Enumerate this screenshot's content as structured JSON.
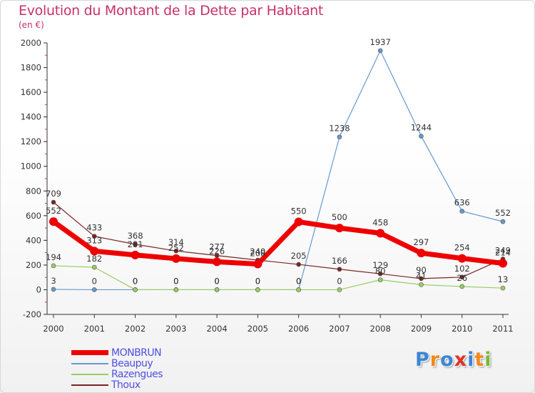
{
  "chart_data": {
    "type": "line",
    "title": "Evolution du Montant de la Dette par Habitant",
    "subtitle": "(en €)",
    "x": [
      "2000",
      "2001",
      "2002",
      "2003",
      "2004",
      "2005",
      "2006",
      "2007",
      "2008",
      "2009",
      "2010",
      "2011"
    ],
    "ylim": [
      -200,
      2000
    ],
    "yticks": [
      -200,
      0,
      200,
      400,
      600,
      800,
      1000,
      1200,
      1400,
      1600,
      1800,
      2000
    ],
    "grid": false,
    "legend_position": "bottom-left",
    "series": [
      {
        "name": "MONBRUN",
        "color": "#ee0000",
        "values": [
          552,
          313,
          281,
          252,
          226,
          208,
          550,
          500,
          458,
          297,
          254,
          214
        ]
      },
      {
        "name": "Beaupuy",
        "color": "#6699cc",
        "values": [
          3,
          0,
          0,
          0,
          0,
          0,
          0,
          1238,
          1937,
          1244,
          636,
          552
        ]
      },
      {
        "name": "Razengues",
        "color": "#99cc66",
        "values": [
          194,
          182,
          0,
          0,
          0,
          0,
          0,
          0,
          80,
          41,
          26,
          13
        ]
      },
      {
        "name": "Thoux",
        "color": "#7a2525",
        "values": [
          709,
          433,
          368,
          314,
          277,
          240,
          205,
          166,
          129,
          90,
          102,
          249
        ]
      }
    ]
  },
  "brand": {
    "letters": [
      "P",
      "r",
      "o",
      "x",
      "i",
      "t",
      "i"
    ],
    "colors": [
      "#3a86d6",
      "#f08a1c",
      "#3a86d6",
      "#e0342a",
      "#3a86d6",
      "#f08a1c",
      "#7ab83a"
    ]
  }
}
